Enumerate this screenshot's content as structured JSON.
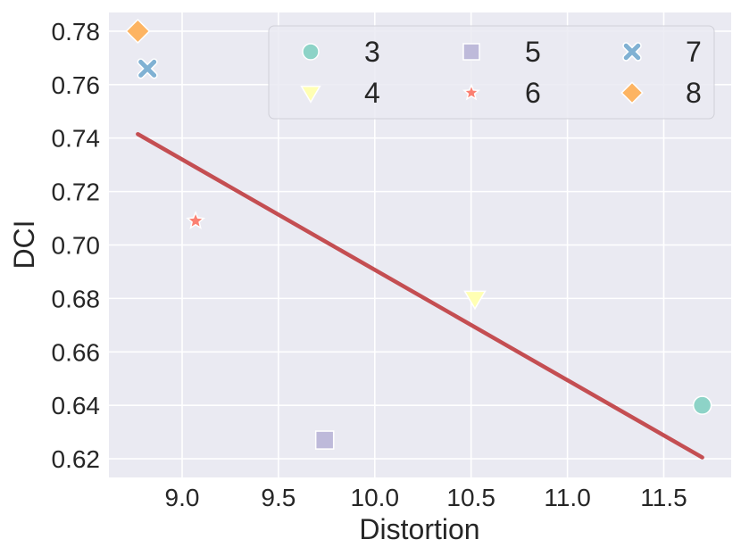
{
  "chart_data": {
    "type": "scatter",
    "title": "",
    "xlabel": "Distortion",
    "ylabel": "DCI",
    "xlim": [
      8.62,
      11.85
    ],
    "ylim": [
      0.613,
      0.787
    ],
    "xticks": [
      9.0,
      9.5,
      10.0,
      10.5,
      11.0,
      11.5
    ],
    "xtick_labels": [
      "9.0",
      "9.5",
      "10.0",
      "10.5",
      "11.0",
      "11.5"
    ],
    "yticks": [
      0.62,
      0.64,
      0.66,
      0.68,
      0.7,
      0.72,
      0.74,
      0.76,
      0.78
    ],
    "ytick_labels": [
      "0.62",
      "0.64",
      "0.66",
      "0.68",
      "0.70",
      "0.72",
      "0.74",
      "0.76",
      "0.78"
    ],
    "grid": true,
    "legend_position": "top-right",
    "series": [
      {
        "name": "3",
        "marker": "circle",
        "color": "#8dd3c7",
        "x": 11.7,
        "y": 0.64
      },
      {
        "name": "4",
        "marker": "triangle-down",
        "color": "#ffffb3",
        "x": 10.52,
        "y": 0.68
      },
      {
        "name": "5",
        "marker": "square",
        "color": "#bebada",
        "x": 9.74,
        "y": 0.627
      },
      {
        "name": "6",
        "marker": "star",
        "color": "#fb8072",
        "x": 9.07,
        "y": 0.709
      },
      {
        "name": "7",
        "marker": "x",
        "color": "#80b1d3",
        "x": 8.82,
        "y": 0.766
      },
      {
        "name": "8",
        "marker": "diamond",
        "color": "#fdb462",
        "x": 8.77,
        "y": 0.78
      }
    ],
    "fit_line": {
      "x": [
        8.77,
        11.7
      ],
      "y": [
        0.7415,
        0.6205
      ],
      "color": "#c44e52"
    }
  },
  "colors": {
    "plot_background": "#eaeaf2",
    "grid": "#ffffff",
    "text": "#262626"
  }
}
